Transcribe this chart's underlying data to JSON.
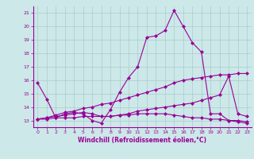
{
  "xlabel": "Windchill (Refroidissement éolien,°C)",
  "background_color": "#cce8e8",
  "line_color": "#990099",
  "grid_color": "#aacccc",
  "x_values": [
    0,
    1,
    2,
    3,
    4,
    5,
    6,
    7,
    8,
    9,
    10,
    11,
    12,
    13,
    14,
    15,
    16,
    17,
    18,
    19,
    20,
    21,
    22,
    23
  ],
  "series1": [
    15.8,
    14.6,
    13.2,
    13.5,
    13.6,
    13.5,
    13.0,
    12.8,
    13.8,
    15.1,
    16.2,
    17.0,
    19.2,
    19.3,
    19.7,
    21.2,
    20.0,
    18.8,
    18.1,
    13.5,
    13.5,
    13.0,
    12.9,
    12.8
  ],
  "series2": [
    13.1,
    13.1,
    13.2,
    13.2,
    13.2,
    13.3,
    13.3,
    13.3,
    13.3,
    13.4,
    13.4,
    13.5,
    13.5,
    13.5,
    13.5,
    13.4,
    13.3,
    13.2,
    13.2,
    13.1,
    13.1,
    13.0,
    13.0,
    12.9
  ],
  "series3": [
    13.1,
    13.2,
    13.3,
    13.4,
    13.5,
    13.6,
    13.5,
    13.3,
    13.3,
    13.4,
    13.5,
    13.7,
    13.8,
    13.9,
    14.0,
    14.1,
    14.2,
    14.3,
    14.5,
    14.7,
    14.9,
    16.3,
    13.5,
    13.3
  ],
  "series4": [
    13.1,
    13.2,
    13.4,
    13.6,
    13.7,
    13.9,
    14.0,
    14.2,
    14.3,
    14.5,
    14.7,
    14.9,
    15.1,
    15.3,
    15.5,
    15.8,
    16.0,
    16.1,
    16.2,
    16.3,
    16.4,
    16.4,
    16.5,
    16.5
  ],
  "xlim": [
    -0.5,
    23.5
  ],
  "ylim": [
    12.5,
    21.5
  ],
  "yticks": [
    13,
    14,
    15,
    16,
    17,
    18,
    19,
    20,
    21
  ],
  "xticks": [
    0,
    1,
    2,
    3,
    4,
    5,
    6,
    7,
    8,
    9,
    10,
    11,
    12,
    13,
    14,
    15,
    16,
    17,
    18,
    19,
    20,
    21,
    22,
    23
  ]
}
